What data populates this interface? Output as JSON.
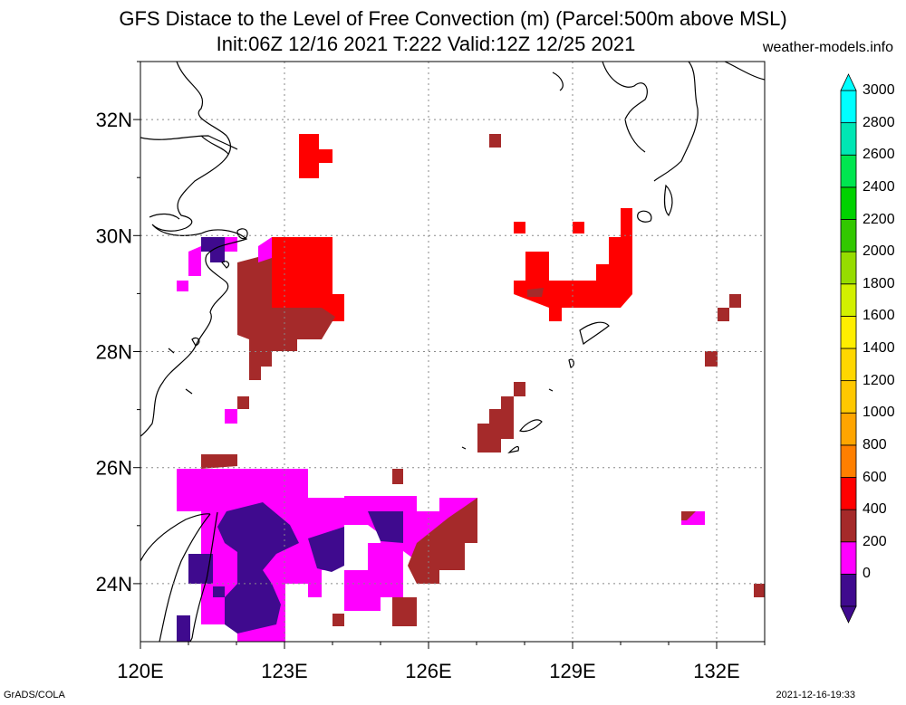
{
  "header": {
    "title_line1": "GFS Distace to the Level of Free Convection (m) (Parcel:500m above MSL)",
    "title_line2": "Init:06Z 12/16 2021 T:222 Valid:12Z 12/25 2021",
    "site": "weather-models.info"
  },
  "map": {
    "lon_ticks": [
      "120E",
      "123E",
      "126E",
      "129E",
      "132E"
    ],
    "lat_ticks": [
      "32N",
      "30N",
      "28N",
      "26N",
      "24N"
    ],
    "lon_range": [
      120,
      133
    ],
    "lat_range": [
      23,
      33
    ],
    "grid_step_deg": 0.25
  },
  "colorbar": {
    "labels": [
      "3000",
      "2800",
      "2600",
      "2400",
      "2200",
      "2000",
      "1800",
      "1600",
      "1400",
      "1200",
      "1000",
      "800",
      "600",
      "400",
      "200",
      "0"
    ],
    "colors_bottom_to_top": [
      "#3f0a8e",
      "#ff00ff",
      "#a52a2a",
      "#ff0000",
      "#ff7f00",
      "#ffa500",
      "#ffc800",
      "#ffd700",
      "#ffee00",
      "#d2f000",
      "#96dc00",
      "#32c800",
      "#00d200",
      "#00e650",
      "#00e6b4",
      "#00ffff"
    ]
  },
  "footer": {
    "left": "GrADS/COLA",
    "right": "2021-12-16-19:33"
  }
}
